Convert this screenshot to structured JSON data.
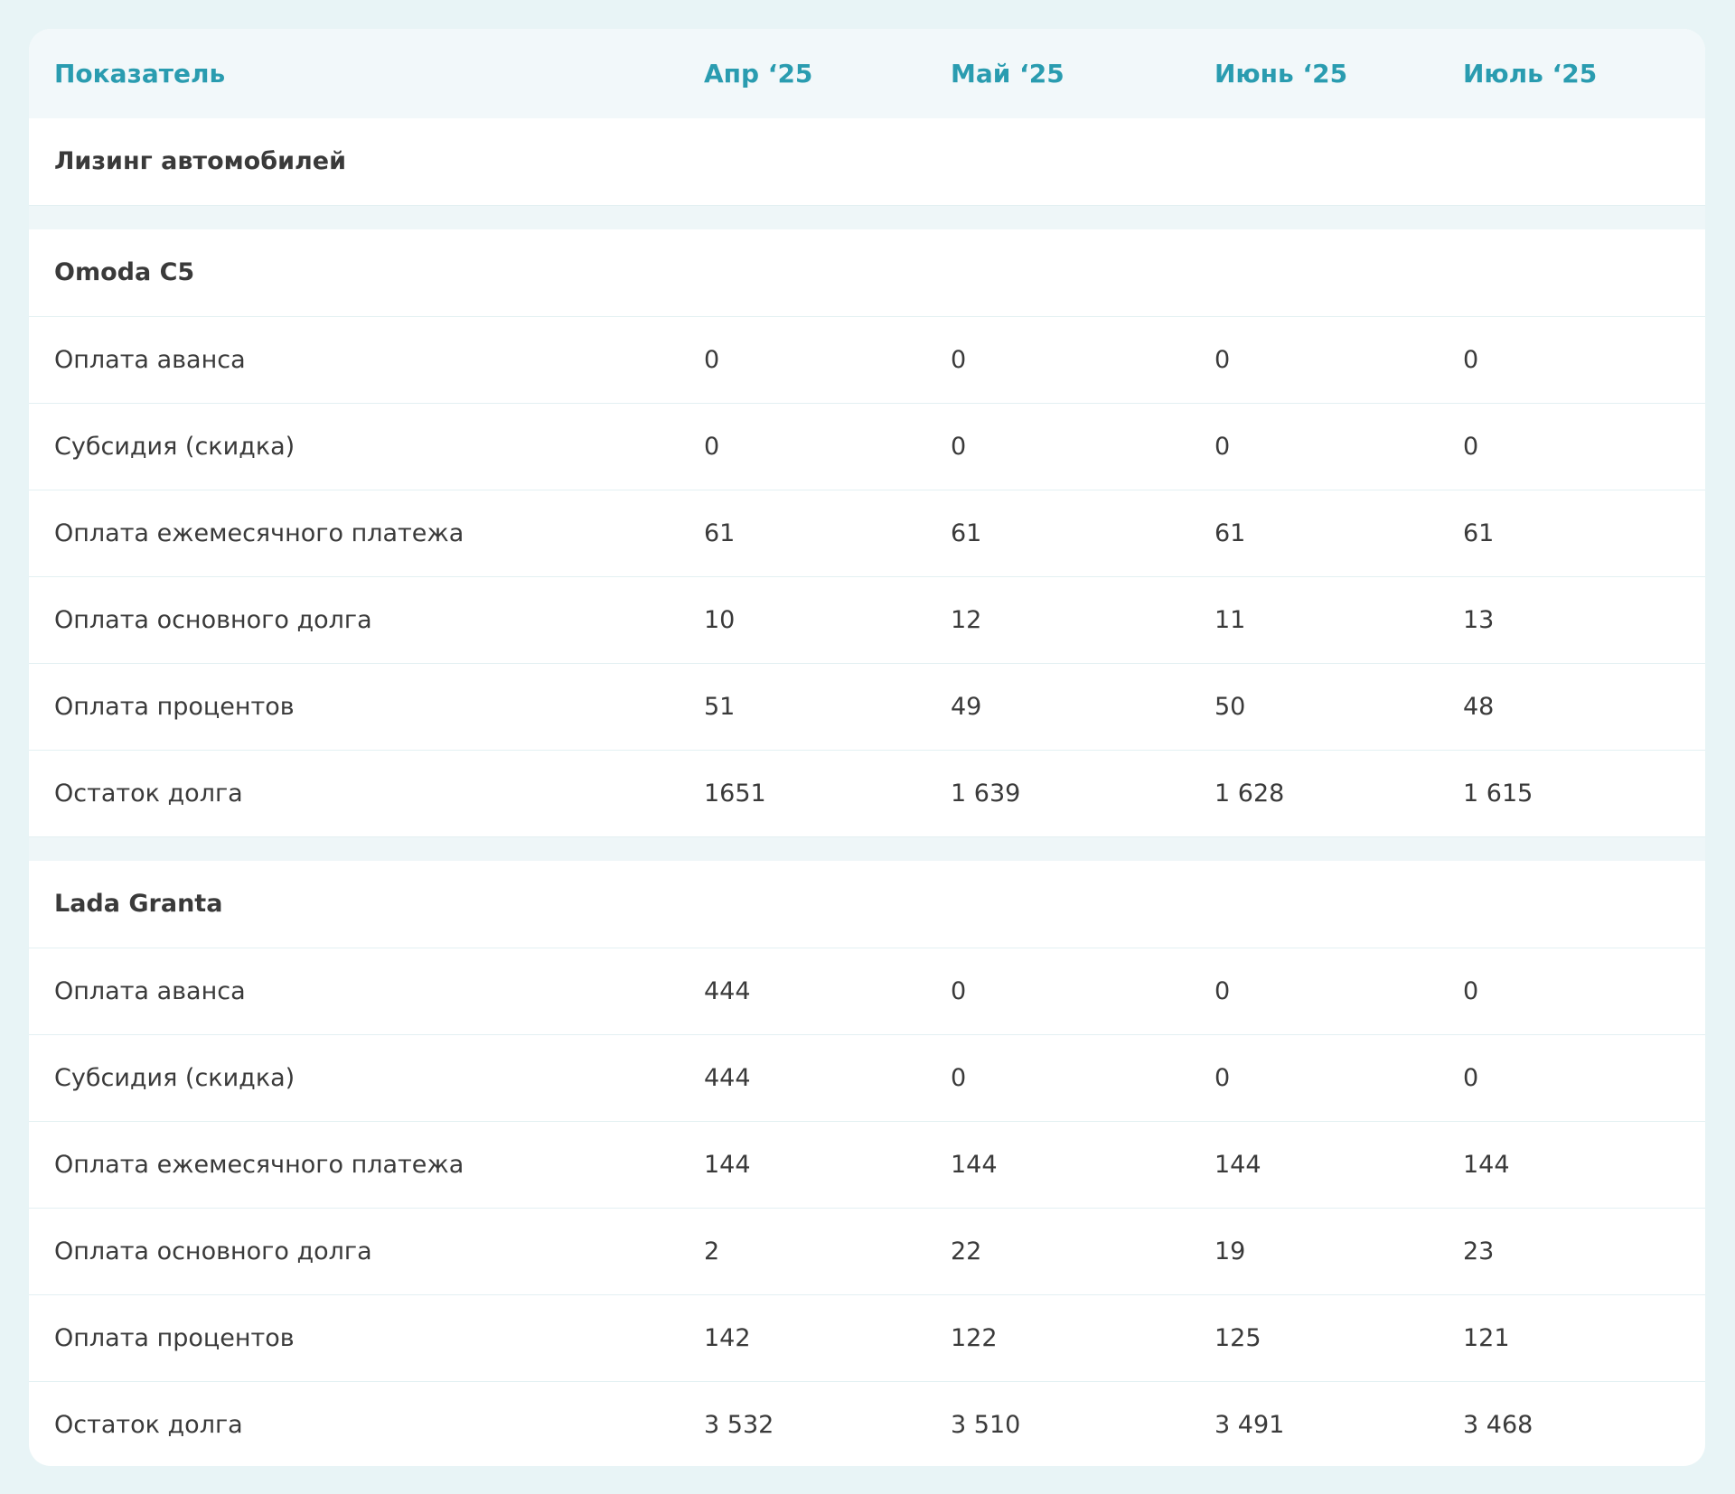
{
  "table": {
    "header": [
      "Показатель",
      "Апр ‘25",
      "Май ‘25",
      "Июнь ‘25",
      "Июль ‘25"
    ],
    "section": "Лизинг автомобилей",
    "groups": [
      {
        "name": "Omoda C5",
        "rows": [
          {
            "label": "Оплата аванса",
            "values": [
              "0",
              "0",
              "0",
              "0"
            ]
          },
          {
            "label": "Субсидия (скидка)",
            "values": [
              "0",
              "0",
              "0",
              "0"
            ]
          },
          {
            "label": "Оплата ежемесячного платежа",
            "values": [
              "61",
              "61",
              "61",
              "61"
            ]
          },
          {
            "label": "Оплата основного долга",
            "values": [
              "10",
              "12",
              "11",
              "13"
            ]
          },
          {
            "label": "Оплата процентов",
            "values": [
              "51",
              "49",
              "50",
              "48"
            ]
          },
          {
            "label": "Остаток долга",
            "values": [
              "1651",
              "1 639",
              "1 628",
              "1 615"
            ]
          }
        ]
      },
      {
        "name": "Lada Granta",
        "rows": [
          {
            "label": "Оплата аванса",
            "values": [
              "444",
              "0",
              "0",
              "0"
            ]
          },
          {
            "label": "Субсидия (скидка)",
            "values": [
              "444",
              "0",
              "0",
              "0"
            ]
          },
          {
            "label": "Оплата ежемесячного платежа",
            "values": [
              "144",
              "144",
              "144",
              "144"
            ]
          },
          {
            "label": "Оплата основного долга",
            "values": [
              "2",
              "22",
              "19",
              "23"
            ]
          },
          {
            "label": "Оплата процентов",
            "values": [
              "142",
              "122",
              "125",
              "121"
            ]
          },
          {
            "label": "Остаток долга",
            "values": [
              "3 532",
              "3 510",
              "3 491",
              "3 468"
            ]
          }
        ]
      }
    ]
  }
}
